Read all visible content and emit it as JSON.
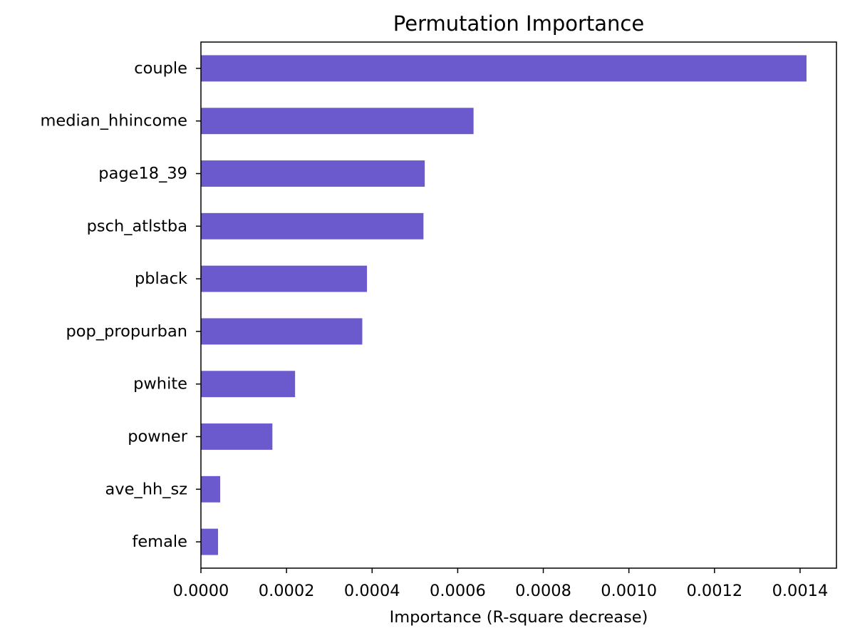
{
  "chart_data": {
    "type": "bar",
    "orientation": "horizontal",
    "title": "Permutation Importance",
    "xlabel": "Importance (R-square decrease)",
    "ylabel": "",
    "categories": [
      "couple",
      "median_hhincome",
      "page18_39",
      "psch_atlstba",
      "pblack",
      "pop_propurban",
      "pwhite",
      "powner",
      "ave_hh_sz",
      "female"
    ],
    "values": [
      0.001415,
      0.000637,
      0.000523,
      0.00052,
      0.000388,
      0.000377,
      0.00022,
      0.000167,
      4.5e-05,
      4e-05
    ],
    "xlim": [
      0,
      0.001485
    ],
    "xticks": [
      0,
      0.0002,
      0.0004,
      0.0006,
      0.0008,
      0.001,
      0.0012,
      0.0014
    ],
    "xtick_labels": [
      "0.0000",
      "0.0002",
      "0.0004",
      "0.0006",
      "0.0008",
      "0.0010",
      "0.0012",
      "0.0014"
    ],
    "bar_color": "#6a5acd",
    "grid": false,
    "legend": "none"
  }
}
